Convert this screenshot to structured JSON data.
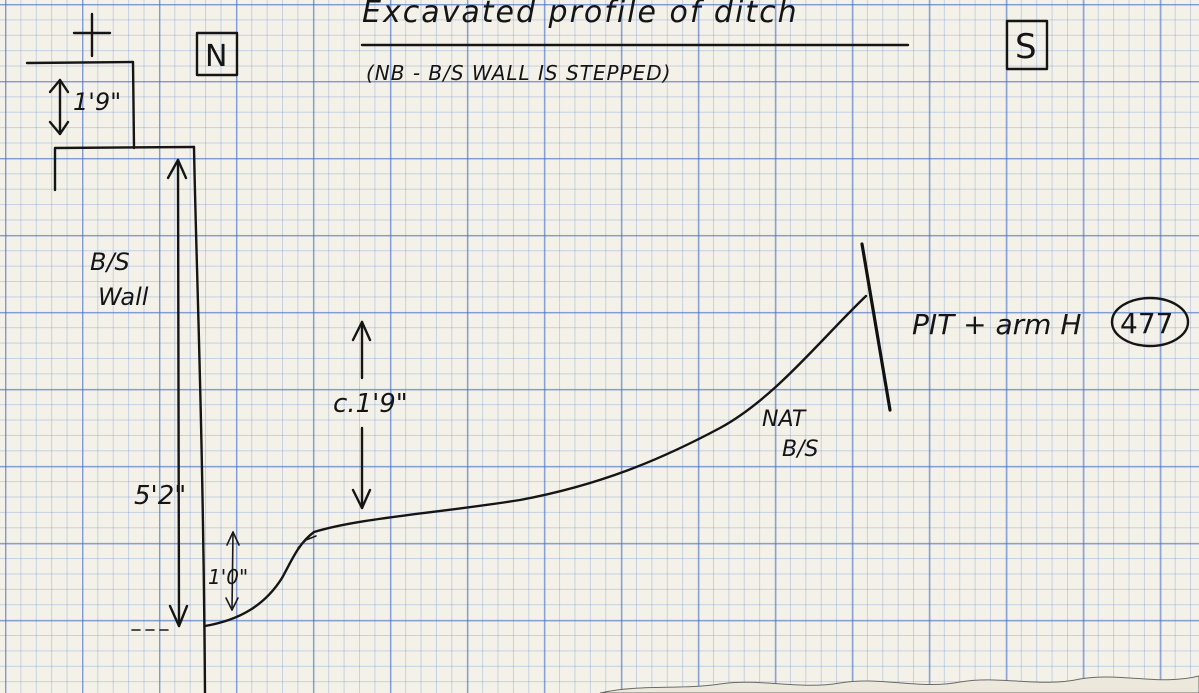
{
  "sheet": {
    "title": "Excavated profile of ditch",
    "note": "(NB - B/S WALL IS STEPPED)",
    "orientation_north": "N",
    "orientation_south": "S",
    "cross_marker": "+"
  },
  "labels": {
    "top_step_height": "1'9\"",
    "wall_name_line1": "B/S",
    "wall_name_line2": "Wall",
    "wall_height": "5'2\"",
    "bottom_step": "1'0\"",
    "ditch_depth": "c.1'9\"",
    "natural_line1": "NAT",
    "natural_line2": "B/S",
    "end_note": "PIT + arm H",
    "context_number": "477"
  },
  "colors": {
    "paper": "#f4f2e8",
    "grid": "#466ec8",
    "ink": "#151515"
  }
}
